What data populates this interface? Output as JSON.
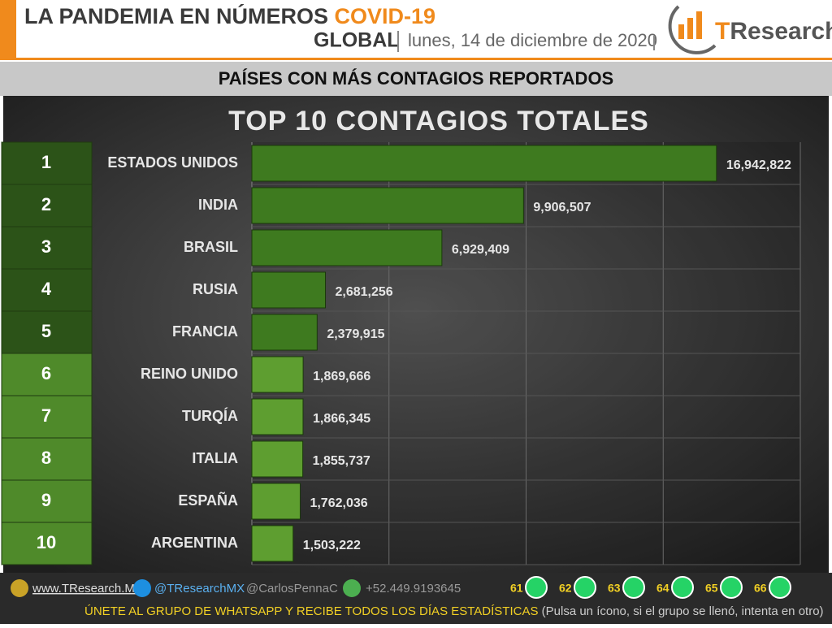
{
  "header": {
    "title": "LA PANDEMIA EN NÚMEROS",
    "title_highlight": "COVID-19",
    "scope": "GLOBAL",
    "date": "lunes, 14 de diciembre de 2020",
    "logo_prefix": "T",
    "logo_rest": "Research"
  },
  "banner": "PAÍSES CON MÁS CONTAGIOS REPORTADOS",
  "chart_data": {
    "type": "bar",
    "orientation": "horizontal",
    "title": "TOP 10 CONTAGIOS TOTALES",
    "ranks": [
      1,
      2,
      3,
      4,
      5,
      6,
      7,
      8,
      9,
      10
    ],
    "categories": [
      "ESTADOS UNIDOS",
      "INDIA",
      "BRASIL",
      "RUSIA",
      "FRANCIA",
      "REINO UNIDO",
      "TURQÍA",
      "ITALIA",
      "ESPAÑA",
      "ARGENTINA"
    ],
    "values": [
      16942822,
      9906507,
      6929409,
      2681256,
      2379915,
      1869666,
      1866345,
      1855737,
      1762036,
      1503222
    ],
    "value_labels": [
      "16,942,822",
      "9,906,507",
      "6,929,409",
      "2,681,256",
      "2,379,915",
      "1,869,666",
      "1,866,345",
      "1,855,737",
      "1,762,036",
      "1,503,222"
    ],
    "colors": [
      "#3e7a1f",
      "#3e7a1f",
      "#3e7a1f",
      "#3e7a1f",
      "#3e7a1f",
      "#5e9e30",
      "#5e9e30",
      "#5e9e30",
      "#5e9e30",
      "#5e9e30"
    ],
    "rank_colors": [
      "#2c5318",
      "#2c5318",
      "#2c5318",
      "#2c5318",
      "#2c5318",
      "#4f8a2a",
      "#4f8a2a",
      "#4f8a2a",
      "#4f8a2a",
      "#4f8a2a"
    ],
    "xlim": [
      0,
      20000000
    ],
    "gridlines": [
      5000000,
      10000000,
      15000000,
      20000000
    ],
    "grid": true
  },
  "footer": {
    "website": "www.TResearch.Mx",
    "twitter": "@TResearchMX",
    "twitter2": "@CarlosPennaC",
    "phone": "+52.449.9193645",
    "groups": [
      61,
      62,
      63,
      64,
      65,
      66
    ],
    "cta": "ÚNETE AL GRUPO DE WHATSAPP Y RECIBE TODOS LOS DÍAS ESTADÍSTICAS",
    "cta_note": "(Pulsa un ícono, si el grupo se llenó, intenta en otro)"
  }
}
